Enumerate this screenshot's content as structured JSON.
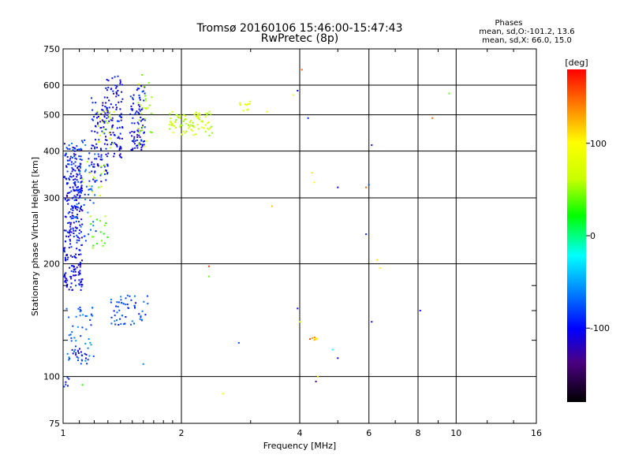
{
  "chart_data": {
    "type": "scatter",
    "title": "Tromsø 20160106 15:46:00-15:47:43",
    "subtitle": "RwPretec (8p)",
    "xlabel": "Frequency [MHz]",
    "ylabel": "Stationary phase Virtual Height [km]",
    "x_scale": "log",
    "y_scale": "log",
    "xlim": [
      1,
      16
    ],
    "ylim": [
      75,
      750
    ],
    "x_ticks": [
      "1",
      "2",
      "4",
      "6",
      "8",
      "10",
      "16"
    ],
    "x_tick_values": [
      1,
      2,
      4,
      6,
      8,
      10,
      16
    ],
    "y_ticks": [
      "75",
      "100",
      "200",
      "300",
      "400",
      "500",
      "600",
      "750"
    ],
    "y_tick_values": [
      75,
      100,
      200,
      300,
      400,
      500,
      600,
      750
    ],
    "y_minor_values": [
      125,
      150,
      175
    ],
    "grid": true,
    "legend": {
      "title": "Phases",
      "line1": "mean, sd,O:-101.2, 13.6",
      "line2": "mean, sd,X:  66.0, 15.0",
      "placement": "top-right"
    },
    "colorbar": {
      "label": "[deg]",
      "min": -180,
      "max": 180,
      "ticks": [
        "100",
        "0",
        "-100"
      ],
      "tick_values": [
        100,
        0,
        -100
      ]
    },
    "clusters": [
      {
        "fmin": 1.0,
        "fmax": 1.12,
        "hmin": 170,
        "hmax": 420,
        "phase": -100,
        "count": 330
      },
      {
        "fmin": 1.05,
        "fmax": 1.22,
        "hmin": 230,
        "hmax": 430,
        "phase": -75,
        "count": 60
      },
      {
        "fmin": 1.18,
        "fmax": 1.3,
        "hmin": 330,
        "hmax": 560,
        "phase": -100,
        "count": 100
      },
      {
        "fmin": 1.15,
        "fmax": 1.3,
        "hmin": 220,
        "hmax": 270,
        "phase": 40,
        "count": 18
      },
      {
        "fmin": 1.12,
        "fmax": 1.28,
        "hmin": 300,
        "hmax": 380,
        "phase": 60,
        "count": 15
      },
      {
        "fmin": 1.28,
        "fmax": 1.42,
        "hmin": 380,
        "hmax": 640,
        "phase": -105,
        "count": 95
      },
      {
        "fmin": 1.22,
        "fmax": 1.35,
        "hmin": 400,
        "hmax": 520,
        "phase": 70,
        "count": 25
      },
      {
        "fmin": 1.48,
        "fmax": 1.62,
        "hmin": 400,
        "hmax": 600,
        "phase": -100,
        "count": 90
      },
      {
        "fmin": 1.55,
        "fmax": 1.68,
        "hmin": 410,
        "hmax": 640,
        "phase": 55,
        "count": 30
      },
      {
        "fmin": 1.85,
        "fmax": 2.4,
        "hmin": 440,
        "hmax": 510,
        "phase": 65,
        "count": 90
      },
      {
        "fmin": 2.8,
        "fmax": 3.05,
        "hmin": 510,
        "hmax": 545,
        "phase": 80,
        "count": 12
      },
      {
        "fmin": 1.02,
        "fmax": 1.2,
        "hmin": 110,
        "hmax": 155,
        "phase": -70,
        "count": 50
      },
      {
        "fmin": 1.05,
        "fmax": 1.15,
        "hmin": 108,
        "hmax": 122,
        "phase": -100,
        "count": 18
      },
      {
        "fmin": 1.32,
        "fmax": 1.65,
        "hmin": 137,
        "hmax": 165,
        "phase": -80,
        "count": 55
      },
      {
        "fmin": 1.0,
        "fmax": 1.04,
        "hmin": 94,
        "hmax": 100,
        "phase": -100,
        "count": 6
      },
      {
        "fmin": 4.3,
        "fmax": 4.45,
        "hmin": 125,
        "hmax": 128,
        "phase": 120,
        "count": 8
      }
    ],
    "points": [
      {
        "x": 2.55,
        "y": 90,
        "phase": 100
      },
      {
        "x": 4.05,
        "y": 660,
        "phase": 150
      },
      {
        "x": 3.95,
        "y": 580,
        "phase": -100
      },
      {
        "x": 4.2,
        "y": 490,
        "phase": -90
      },
      {
        "x": 6.1,
        "y": 415,
        "phase": -110
      },
      {
        "x": 4.3,
        "y": 350,
        "phase": 110
      },
      {
        "x": 4.35,
        "y": 330,
        "phase": 100
      },
      {
        "x": 5.0,
        "y": 320,
        "phase": -110
      },
      {
        "x": 5.9,
        "y": 320,
        "phase": 150
      },
      {
        "x": 6.0,
        "y": 325,
        "phase": -80
      },
      {
        "x": 3.4,
        "y": 285,
        "phase": 120
      },
      {
        "x": 5.9,
        "y": 240,
        "phase": -90
      },
      {
        "x": 6.3,
        "y": 205,
        "phase": 110
      },
      {
        "x": 2.35,
        "y": 197,
        "phase": 160
      },
      {
        "x": 2.35,
        "y": 185,
        "phase": 40
      },
      {
        "x": 3.95,
        "y": 152,
        "phase": -100
      },
      {
        "x": 4.0,
        "y": 140,
        "phase": 80
      },
      {
        "x": 4.25,
        "y": 126,
        "phase": 160
      },
      {
        "x": 4.85,
        "y": 118,
        "phase": -20
      },
      {
        "x": 5.0,
        "y": 112,
        "phase": -110
      },
      {
        "x": 6.1,
        "y": 140,
        "phase": -110
      },
      {
        "x": 8.1,
        "y": 150,
        "phase": -110
      },
      {
        "x": 2.8,
        "y": 123,
        "phase": -80
      },
      {
        "x": 1.6,
        "y": 108,
        "phase": -60
      },
      {
        "x": 4.45,
        "y": 100,
        "phase": 110
      },
      {
        "x": 4.4,
        "y": 97,
        "phase": -140
      },
      {
        "x": 8.7,
        "y": 490,
        "phase": 150
      },
      {
        "x": 9.6,
        "y": 570,
        "phase": 40
      },
      {
        "x": 6.4,
        "y": 195,
        "phase": 100
      },
      {
        "x": 1.12,
        "y": 95,
        "phase": 30
      },
      {
        "x": 3.85,
        "y": 565,
        "phase": 80
      },
      {
        "x": 3.3,
        "y": 510,
        "phase": 90
      }
    ]
  }
}
